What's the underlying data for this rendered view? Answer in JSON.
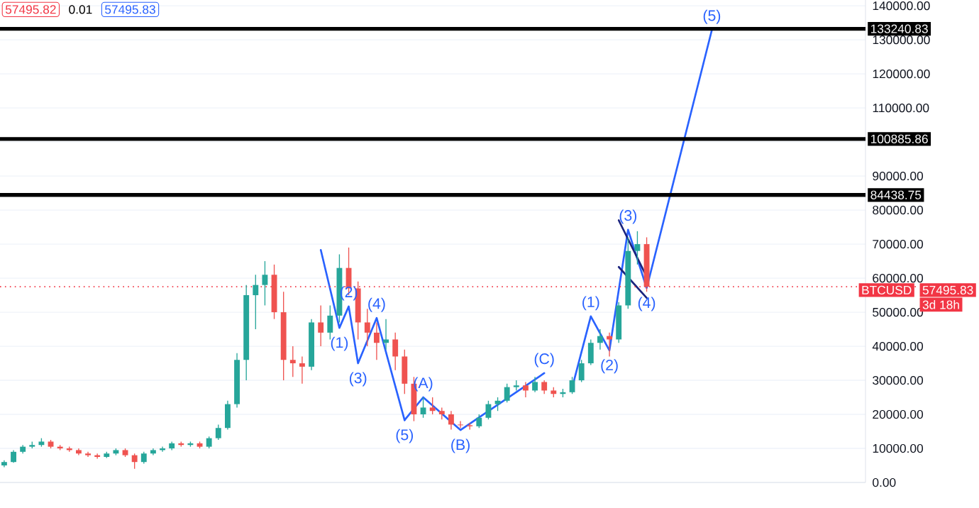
{
  "chart_data": {
    "type": "candlestick",
    "categories": [
      null,
      null,
      null,
      null,
      null,
      null,
      null,
      null,
      null,
      null,
      null,
      null,
      null,
      null,
      null,
      null,
      null,
      null,
      null,
      null,
      null,
      null,
      null,
      null,
      null,
      null,
      null,
      null,
      null,
      null,
      null,
      null,
      null,
      null,
      null,
      null,
      null,
      null,
      null,
      null,
      null,
      null,
      null,
      null,
      null,
      null,
      null,
      null,
      null,
      null,
      null,
      null,
      null,
      null,
      null,
      null,
      null,
      null,
      null,
      null,
      null,
      null,
      null,
      null,
      null,
      null,
      null,
      null,
      null,
      null,
      null,
      null,
      null,
      null,
      null,
      null,
      null,
      null,
      null,
      null,
      null,
      null,
      null,
      null,
      null,
      null,
      null,
      null,
      null,
      null,
      null,
      null,
      null
    ],
    "ohlc": [
      [
        5000,
        6500,
        4500,
        6000
      ],
      [
        6000,
        9500,
        5800,
        9000
      ],
      [
        9000,
        11000,
        8500,
        10500
      ],
      [
        10500,
        12000,
        10000,
        11000
      ],
      [
        11000,
        13000,
        10500,
        12000
      ],
      [
        12000,
        12500,
        10000,
        10500
      ],
      [
        10500,
        11000,
        9500,
        10000
      ],
      [
        10000,
        10500,
        9000,
        9500
      ],
      [
        9500,
        10000,
        8000,
        8500
      ],
      [
        8500,
        9000,
        7500,
        8000
      ],
      [
        8000,
        8500,
        7000,
        7500
      ],
      [
        7500,
        9000,
        7200,
        8500
      ],
      [
        8500,
        10000,
        8000,
        9500
      ],
      [
        9500,
        10000,
        7500,
        8000
      ],
      [
        8000,
        8500,
        4000,
        6000
      ],
      [
        6000,
        9000,
        5500,
        8500
      ],
      [
        8500,
        10000,
        8000,
        9500
      ],
      [
        9500,
        10500,
        9000,
        10000
      ],
      [
        10000,
        12000,
        9500,
        11500
      ],
      [
        11500,
        12000,
        10500,
        11000
      ],
      [
        11000,
        12000,
        10500,
        11500
      ],
      [
        11500,
        12000,
        10000,
        10500
      ],
      [
        10500,
        13500,
        10000,
        13000
      ],
      [
        13000,
        17000,
        12500,
        16000
      ],
      [
        16000,
        24000,
        15500,
        23000
      ],
      [
        23000,
        38000,
        22000,
        36000
      ],
      [
        36000,
        58000,
        30000,
        55000
      ],
      [
        55000,
        61000,
        45000,
        58000
      ],
      [
        58000,
        65000,
        52000,
        61000
      ],
      [
        61000,
        64000,
        48000,
        50000
      ],
      [
        50000,
        56000,
        30000,
        36000
      ],
      [
        36000,
        40000,
        31000,
        35000
      ],
      [
        35000,
        37000,
        29000,
        34000
      ],
      [
        34000,
        48000,
        33000,
        47000
      ],
      [
        47000,
        52000,
        40000,
        44000
      ],
      [
        44000,
        52000,
        42000,
        49000
      ],
      [
        49000,
        67000,
        47000,
        63000
      ],
      [
        63000,
        69000,
        55000,
        57000
      ],
      [
        57000,
        59000,
        42000,
        47000
      ],
      [
        47000,
        51000,
        40000,
        44000
      ],
      [
        44000,
        47000,
        36000,
        41000
      ],
      [
        41000,
        48000,
        39000,
        42000
      ],
      [
        42000,
        44000,
        33000,
        37000
      ],
      [
        37000,
        39000,
        26000,
        29000
      ],
      [
        29000,
        31000,
        18000,
        20000
      ],
      [
        20000,
        25000,
        19000,
        22000
      ],
      [
        22000,
        25000,
        20000,
        21000
      ],
      [
        21000,
        22000,
        18500,
        20000
      ],
      [
        20000,
        21000,
        15500,
        17000
      ],
      [
        17000,
        18000,
        16000,
        16800
      ],
      [
        16800,
        17500,
        15500,
        16500
      ],
      [
        16500,
        20000,
        16000,
        19000
      ],
      [
        19000,
        24000,
        18500,
        23000
      ],
      [
        23000,
        25000,
        21000,
        24000
      ],
      [
        24000,
        29000,
        23500,
        28000
      ],
      [
        28000,
        30000,
        27000,
        28500
      ],
      [
        28500,
        29500,
        25000,
        27000
      ],
      [
        27000,
        31000,
        26500,
        29500
      ],
      [
        29500,
        30000,
        26000,
        27000
      ],
      [
        27000,
        28000,
        25000,
        26000
      ],
      [
        26000,
        27500,
        25000,
        26500
      ],
      [
        26500,
        31000,
        26000,
        30000
      ],
      [
        30000,
        36000,
        29500,
        35000
      ],
      [
        35000,
        42000,
        34500,
        41000
      ],
      [
        41000,
        45000,
        39000,
        43000
      ],
      [
        43000,
        44000,
        37000,
        42000
      ],
      [
        42000,
        53000,
        41000,
        52000
      ],
      [
        52000,
        72000,
        51000,
        68000
      ],
      [
        68000,
        73800,
        64000,
        70000
      ],
      [
        70000,
        72000,
        56000,
        57495.83
      ],
      null,
      null,
      null,
      null,
      null,
      null,
      null,
      null,
      null,
      null,
      null,
      null,
      null,
      null,
      null,
      null,
      null,
      null,
      null,
      null,
      null,
      null,
      null
    ],
    "series": [
      {
        "type": "line",
        "color": "#2962ff",
        "values": [
          null,
          null,
          null,
          null,
          null,
          null,
          null,
          null,
          null,
          null,
          null,
          null,
          null,
          null,
          null,
          null,
          null,
          null,
          null,
          null,
          null,
          null,
          null,
          null,
          null,
          null,
          null,
          null,
          null,
          null,
          null,
          null,
          null,
          null,
          68300,
          null,
          45400,
          51700,
          35000,
          null,
          48300,
          null,
          null,
          18300,
          null,
          null,
          null,
          null,
          null,
          null,
          null,
          null,
          null,
          null,
          null,
          null,
          null,
          null,
          null,
          null,
          null,
          null,
          null,
          null,
          null,
          null,
          null,
          null,
          null,
          null,
          null,
          null,
          null,
          null,
          null,
          null,
          null,
          null,
          null,
          null,
          null,
          null,
          null,
          null,
          null,
          null,
          null,
          null,
          null,
          null,
          null,
          null,
          null
        ]
      },
      {
        "type": "line",
        "color": "#2962ff",
        "values": [
          null,
          null,
          null,
          null,
          null,
          null,
          null,
          null,
          null,
          null,
          null,
          null,
          null,
          null,
          null,
          null,
          null,
          null,
          null,
          null,
          null,
          null,
          null,
          null,
          null,
          null,
          null,
          null,
          null,
          null,
          null,
          null,
          null,
          null,
          null,
          null,
          null,
          null,
          null,
          null,
          null,
          null,
          null,
          18300,
          null,
          25000,
          null,
          null,
          null,
          15400,
          null,
          null,
          null,
          null,
          null,
          null,
          null,
          null,
          32100,
          null,
          null,
          null,
          null,
          null,
          null,
          null,
          null,
          null,
          null,
          null,
          null,
          null,
          null,
          null,
          null,
          null,
          null,
          null,
          null,
          null,
          null,
          null,
          null,
          null,
          null,
          null,
          null,
          null,
          null,
          null,
          null,
          null,
          null
        ]
      },
      {
        "type": "line",
        "color": "#2962ff",
        "values": [
          null,
          null,
          null,
          null,
          null,
          null,
          null,
          null,
          null,
          null,
          null,
          null,
          null,
          null,
          null,
          null,
          null,
          null,
          null,
          null,
          null,
          null,
          null,
          null,
          null,
          null,
          null,
          null,
          null,
          null,
          null,
          null,
          null,
          null,
          null,
          null,
          null,
          null,
          null,
          null,
          null,
          null,
          null,
          null,
          null,
          null,
          null,
          null,
          null,
          null,
          null,
          null,
          null,
          null,
          null,
          null,
          null,
          null,
          null,
          null,
          null,
          27900,
          null,
          48800,
          null,
          38800,
          null,
          74200,
          null,
          57100,
          null,
          null,
          null,
          null,
          null,
          null,
          132900,
          null,
          null,
          null,
          null,
          null,
          null,
          null,
          null,
          null,
          null,
          null,
          null,
          null,
          null,
          null,
          null
        ]
      },
      {
        "type": "line",
        "color": "#1a237e",
        "values": [
          null,
          null,
          null,
          null,
          null,
          null,
          null,
          null,
          null,
          null,
          null,
          null,
          null,
          null,
          null,
          null,
          null,
          null,
          null,
          null,
          null,
          null,
          null,
          null,
          null,
          null,
          null,
          null,
          null,
          null,
          null,
          null,
          null,
          null,
          null,
          null,
          null,
          null,
          null,
          null,
          null,
          null,
          null,
          null,
          null,
          null,
          null,
          null,
          null,
          null,
          null,
          null,
          null,
          null,
          null,
          null,
          null,
          null,
          null,
          null,
          null,
          null,
          null,
          null,
          null,
          null,
          77000,
          null,
          null,
          60400,
          null,
          null,
          null,
          null,
          null,
          null,
          null,
          null,
          null,
          null,
          null,
          null,
          null,
          null,
          null,
          null,
          null,
          null,
          null,
          null,
          null,
          null,
          null
        ]
      },
      {
        "type": "line",
        "color": "#1a237e",
        "values": [
          null,
          null,
          null,
          null,
          null,
          null,
          null,
          null,
          null,
          null,
          null,
          null,
          null,
          null,
          null,
          null,
          null,
          null,
          null,
          null,
          null,
          null,
          null,
          null,
          null,
          null,
          null,
          null,
          null,
          null,
          null,
          null,
          null,
          null,
          null,
          null,
          null,
          null,
          null,
          null,
          null,
          null,
          null,
          null,
          null,
          null,
          null,
          null,
          null,
          null,
          null,
          null,
          null,
          null,
          null,
          null,
          null,
          null,
          null,
          null,
          null,
          null,
          null,
          null,
          null,
          null,
          63300,
          null,
          null,
          54200,
          null,
          null,
          null,
          null,
          null,
          null,
          null,
          null,
          null,
          null,
          null,
          null,
          null,
          null,
          null,
          null,
          null,
          null,
          null,
          null,
          null,
          null,
          null
        ]
      }
    ],
    "ylim": [
      0,
      141700
    ],
    "yticks": [
      {
        "value": 0,
        "label": "0.00"
      },
      {
        "value": 10000,
        "label": "10000.00"
      },
      {
        "value": 20000,
        "label": "20000.00"
      },
      {
        "value": 30000,
        "label": "30000.00"
      },
      {
        "value": 40000,
        "label": "40000.00"
      },
      {
        "value": 50000,
        "label": "50000.00"
      },
      {
        "value": 60000,
        "label": "60000.00"
      },
      {
        "value": 70000,
        "label": "70000.00"
      },
      {
        "value": 80000,
        "label": "80000.00"
      },
      {
        "value": 90000,
        "label": "90000.00"
      },
      {
        "value": 100000,
        "label": null
      },
      {
        "value": 110000,
        "label": "110000.00"
      },
      {
        "value": 120000,
        "label": "120000.00"
      },
      {
        "value": 130000,
        "label": "130000.00"
      },
      {
        "value": 140000,
        "label": "140000.00"
      }
    ],
    "tick_labels": "y",
    "grid": "y",
    "ref_lines": [
      {
        "axis": "y",
        "value": 133240.83,
        "label": "133240.83",
        "color": "#000000",
        "line_style": "solid"
      },
      {
        "axis": "y",
        "value": 100885.86,
        "label": "100885.86",
        "color": "#000000",
        "line_style": "solid"
      },
      {
        "axis": "y",
        "value": 84438.75,
        "label": "84438.75",
        "color": "#000000",
        "line_style": "solid"
      },
      {
        "axis": "y",
        "value": 57495.83,
        "label": "57495.83",
        "color": "#f23645",
        "line_style": "dotted"
      }
    ],
    "annotations": [
      "(2)",
      "(1)",
      "(4)",
      "(3)",
      "(5)",
      "(A)",
      "(B)",
      "(C)",
      "(1)",
      "(2)",
      "(3)",
      "(4)",
      "(5)",
      "BTCUSD",
      "3d 18h",
      "57495.82",
      "0.01",
      "57495.83"
    ]
  }
}
